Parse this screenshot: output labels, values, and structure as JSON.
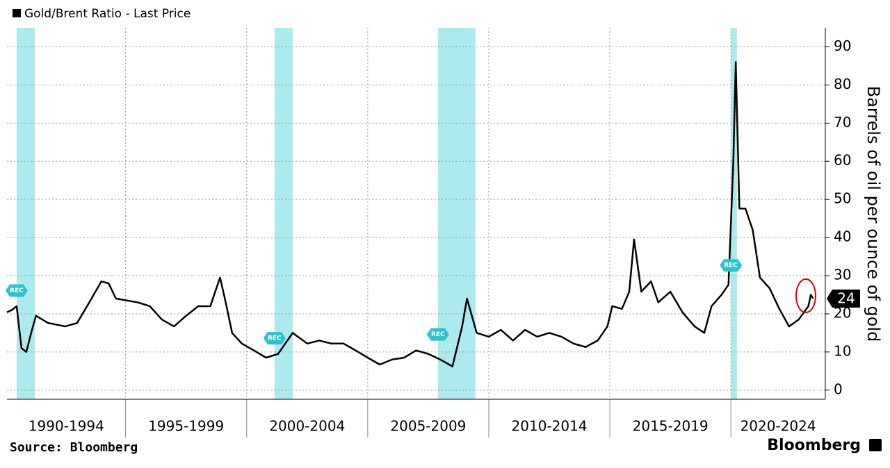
{
  "chart_data": {
    "type": "line",
    "title": "Gold/Brent Ratio - Last Price",
    "y_label": "Barrels of oil per ounce of gold",
    "source": "Source: Bloomberg",
    "brand": "Bloomberg",
    "x": [
      1990.1,
      1990.3,
      1990.5,
      1990.7,
      1990.9,
      1991.1,
      1991.3,
      1991.8,
      1992.5,
      1993,
      1993.5,
      1994,
      1994.3,
      1994.6,
      1995.5,
      1996,
      1996.5,
      1997,
      1997.5,
      1998,
      1998.5,
      1998.9,
      1999.1,
      1999.4,
      1999.8,
      2000.3,
      2000.8,
      2001.3,
      2001.9,
      2002.5,
      2003,
      2003.5,
      2004,
      2004.5,
      2005,
      2005.5,
      2006,
      2006.5,
      2007,
      2007.5,
      2008,
      2008.5,
      2008.9,
      2009.1,
      2009.5,
      2010,
      2010.5,
      2011,
      2011.5,
      2012,
      2012.5,
      2013,
      2013.5,
      2014,
      2014.5,
      2014.9,
      2015.1,
      2015.5,
      2015.8,
      2016,
      2016.3,
      2016.7,
      2017,
      2017.5,
      2018,
      2018.5,
      2018.9,
      2019.2,
      2019.6,
      2019.9,
      2020.1,
      2020.2,
      2020.35,
      2020.6,
      2020.9,
      2021.2,
      2021.6,
      2022,
      2022.4,
      2022.8,
      2023.2,
      2023.3,
      2023.4
    ],
    "series": [
      {
        "name": "Gold/Brent Ratio",
        "color": "#000000",
        "values": [
          20.4,
          21,
          22,
          11,
          10,
          15,
          19.5,
          17.6,
          16.7,
          17.6,
          23,
          28.5,
          28,
          24,
          23,
          22,
          18.5,
          16.7,
          19.5,
          22,
          22,
          29.5,
          24,
          15,
          12.2,
          10.4,
          8.5,
          9.5,
          15,
          12.2,
          13,
          12.2,
          12.2,
          10.4,
          8.5,
          6.7,
          8,
          8.5,
          10.4,
          9.5,
          8,
          6.2,
          16.7,
          24,
          15,
          14,
          15.8,
          13,
          15.8,
          14,
          15,
          14,
          12.2,
          11.3,
          13,
          16.7,
          22,
          21.3,
          25.8,
          39.5,
          25.8,
          28.5,
          23,
          25.8,
          20.4,
          16.7,
          15,
          22,
          24.9,
          27.6,
          60,
          86,
          47.6,
          47.6,
          42,
          29.5,
          26.7,
          21.3,
          16.7,
          18.5,
          22,
          25,
          24
        ]
      }
    ],
    "last_price": 24,
    "xlim": [
      1990.1,
      2023.9
    ],
    "ylim": [
      -2.4,
      95
    ],
    "yticks": [
      0,
      10,
      20,
      30,
      40,
      50,
      60,
      70,
      80,
      90
    ],
    "xgroups": [
      {
        "label": "1990-1994",
        "start": 1990,
        "end": 1995
      },
      {
        "label": "1995-1999",
        "start": 1995,
        "end": 2000
      },
      {
        "label": "2000-2004",
        "start": 2000,
        "end": 2005
      },
      {
        "label": "2005-2009",
        "start": 2005,
        "end": 2010
      },
      {
        "label": "2010-2014",
        "start": 2010,
        "end": 2015
      },
      {
        "label": "2015-2019",
        "start": 2015,
        "end": 2020
      },
      {
        "label": "2020-2024",
        "start": 2020,
        "end": 2025
      }
    ],
    "recessions": [
      {
        "label": "REC",
        "start": 1990.5,
        "end": 1991.25
      },
      {
        "label": "REC",
        "start": 2001.15,
        "end": 2001.9
      },
      {
        "label": "REC",
        "start": 2007.9,
        "end": 2009.45
      },
      {
        "label": "REC",
        "start": 2020.0,
        "end": 2020.25
      }
    ],
    "recession_color": "#9fe6ea",
    "grid": true
  }
}
